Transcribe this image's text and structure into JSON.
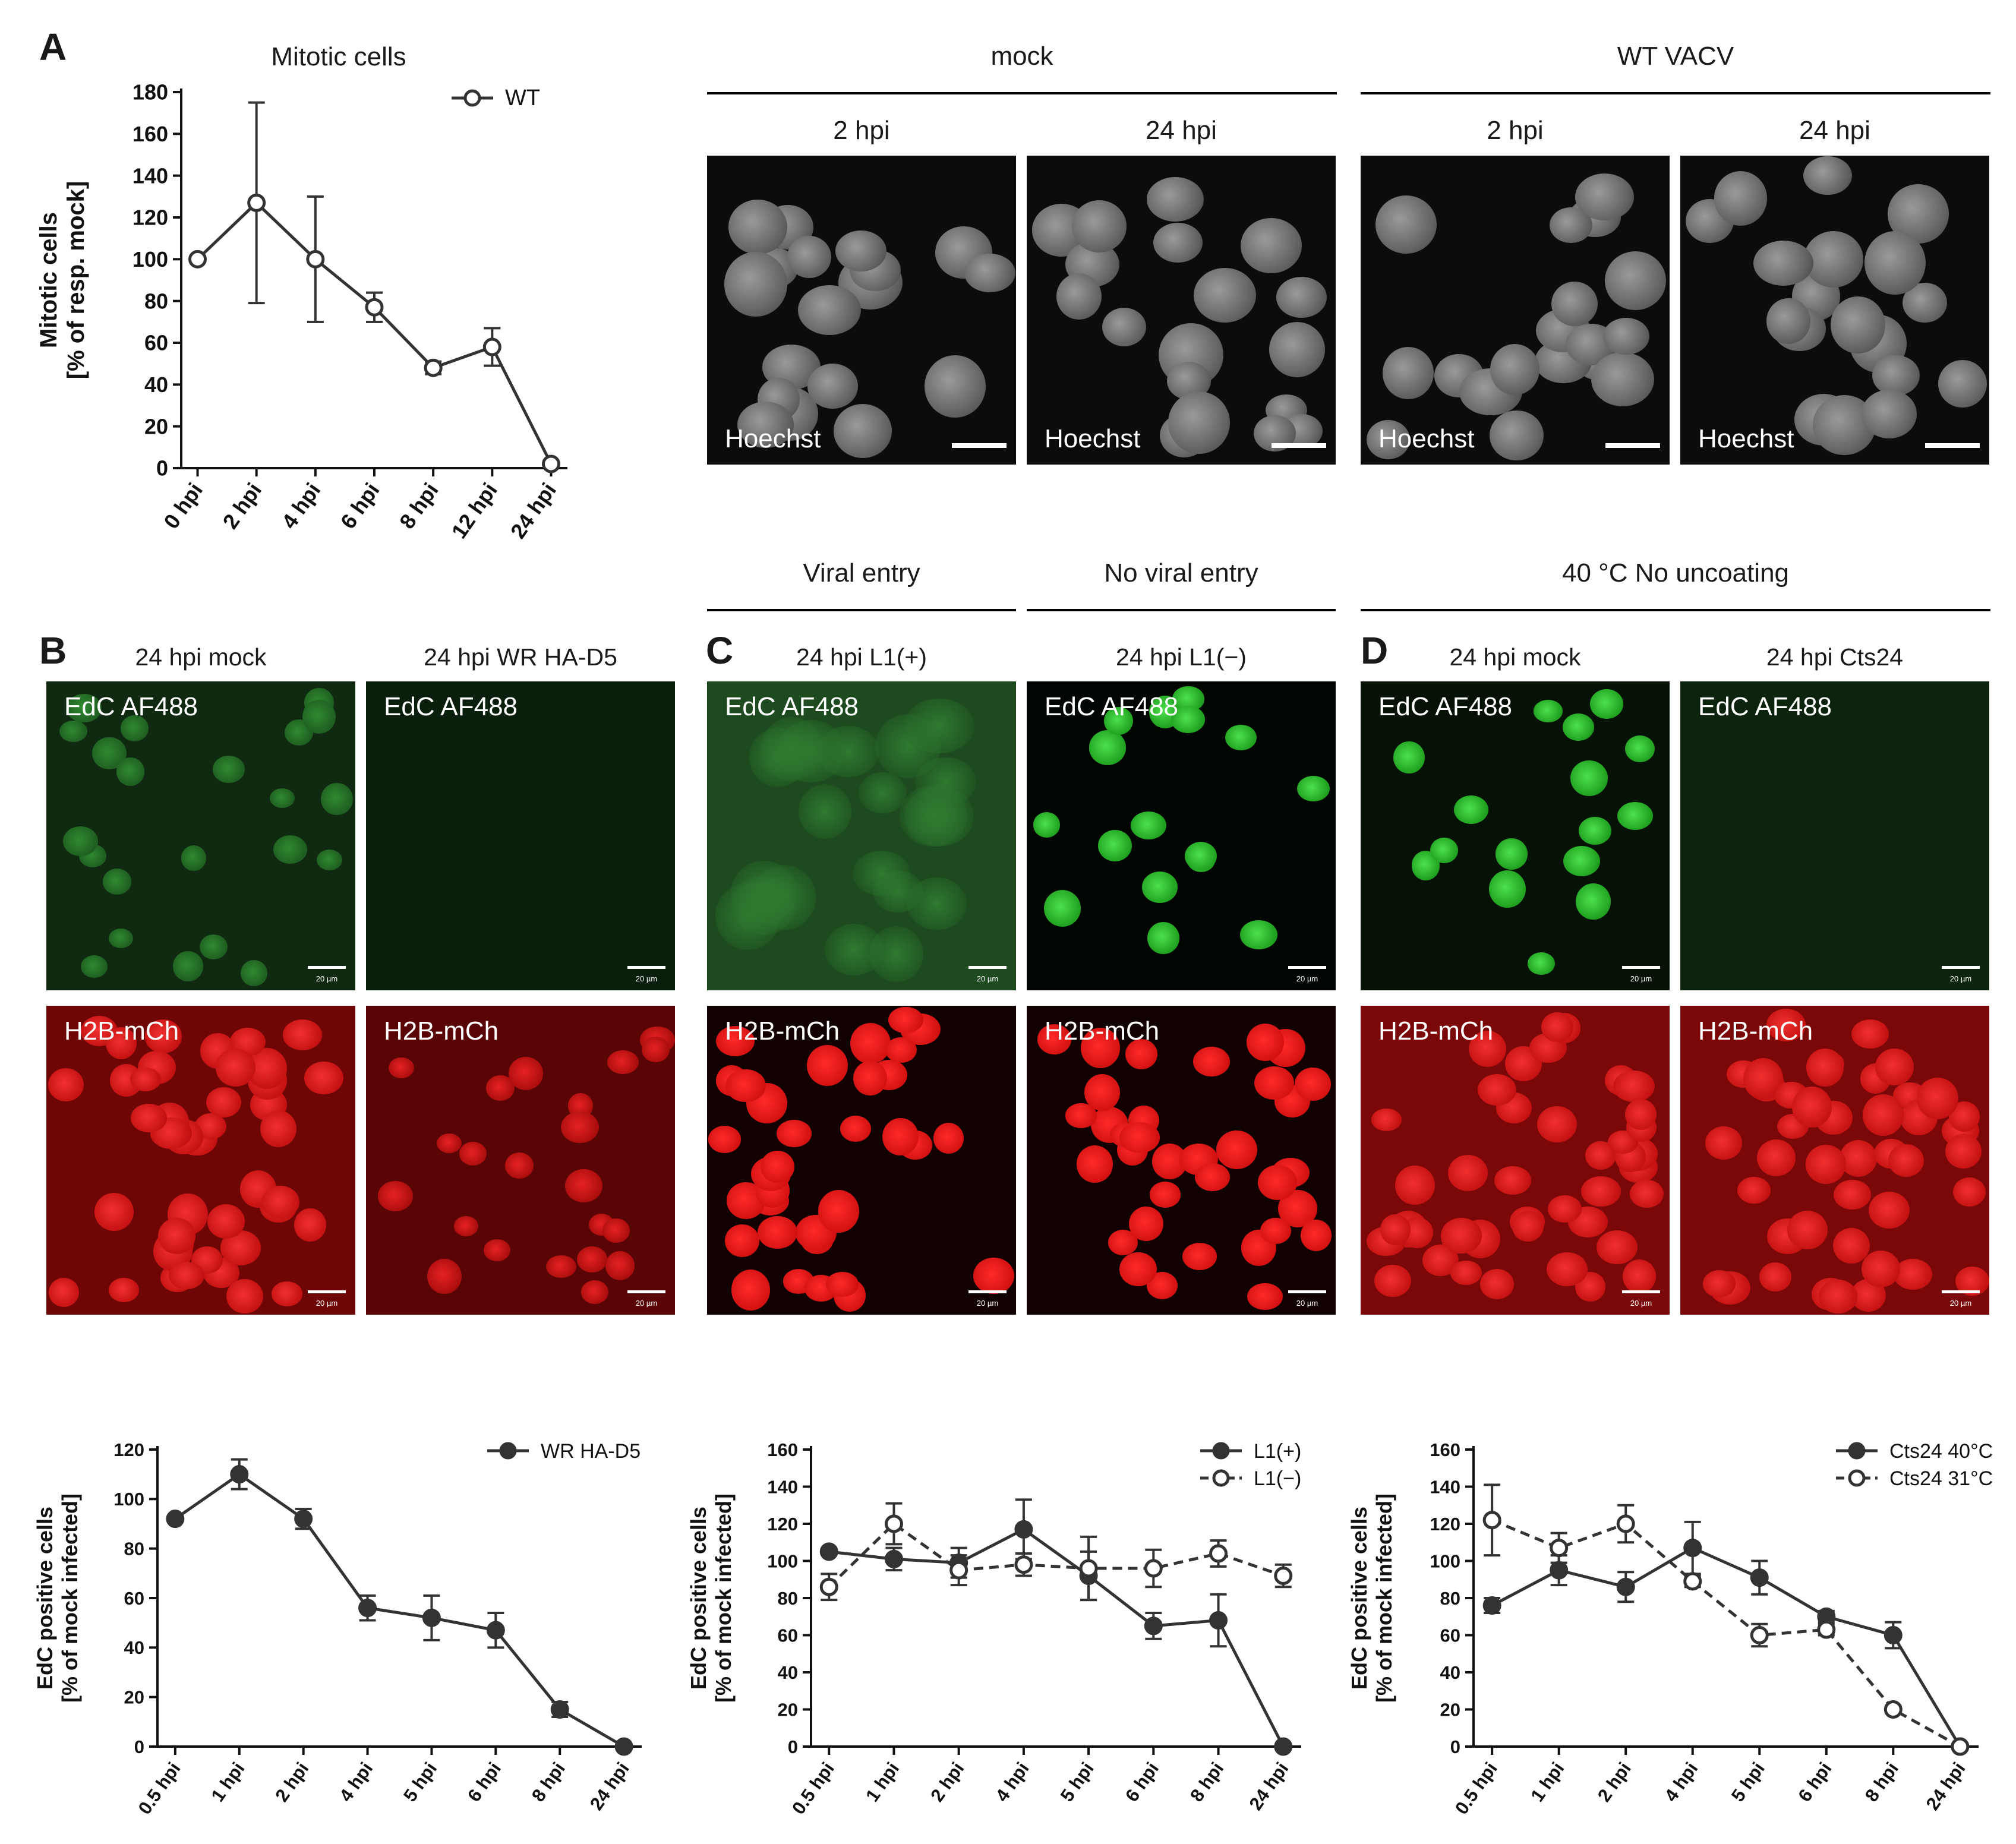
{
  "panel_labels": {
    "a": "A",
    "b": "B",
    "c": "C",
    "d": "D"
  },
  "panel_a": {
    "top_headers": [
      "mock",
      "WT VACV"
    ],
    "sub_headers": [
      "2 hpi",
      "24 hpi",
      "2 hpi",
      "24 hpi"
    ],
    "image_label": "Hoechst"
  },
  "panel_bcd": {
    "group_headers": [
      "Viral entry",
      "No viral entry",
      "40 °C No uncoating"
    ],
    "column_titles": [
      "24 hpi mock",
      "24 hpi WR HA-D5",
      "24 hpi L1(+)",
      "24 hpi L1(−)",
      "24 hpi mock",
      "24 hpi Cts24"
    ],
    "channel_green": "EdC AF488",
    "channel_red": "H2B-mCh",
    "scale_text": "20 µm"
  },
  "colors": {
    "green": "#3cd43c",
    "red": "#ee1c1c",
    "line": "#333333"
  },
  "chart_data": [
    {
      "id": "chart-a",
      "type": "line",
      "title": "Mitotic cells",
      "ylabel": "Mitotic cells",
      "ylabel2": "[% of resp. mock]",
      "categories": [
        "0 hpi",
        "2 hpi",
        "4 hpi",
        "6 hpi",
        "8 hpi",
        "12 hpi",
        "24 hpi"
      ],
      "ylim": [
        0,
        180
      ],
      "yticks": [
        0,
        20,
        40,
        60,
        80,
        100,
        120,
        140,
        160,
        180
      ],
      "legend_position": "top-right",
      "series": [
        {
          "name": "WT",
          "style": "open-solid",
          "values": [
            100,
            127,
            100,
            77,
            48,
            58,
            2
          ],
          "errors": [
            0,
            48,
            30,
            7,
            3,
            9,
            0
          ]
        }
      ]
    },
    {
      "id": "chart-b",
      "type": "line",
      "ylabel": "EdC positive cells",
      "ylabel2": "[% of mock infected]",
      "categories": [
        "0.5 hpi",
        "1 hpi",
        "2 hpi",
        "4 hpi",
        "5 hpi",
        "6 hpi",
        "8 hpi",
        "24 hpi"
      ],
      "ylim": [
        0,
        120
      ],
      "yticks": [
        0,
        20,
        40,
        60,
        80,
        100,
        120
      ],
      "legend_position": "top-right",
      "series": [
        {
          "name": "WR HA-D5",
          "style": "filled-solid",
          "values": [
            92,
            110,
            92,
            56,
            52,
            47,
            15,
            0
          ],
          "errors": [
            0,
            6,
            4,
            5,
            9,
            7,
            3,
            0
          ]
        }
      ]
    },
    {
      "id": "chart-c",
      "type": "line",
      "ylabel": "EdC positive cells",
      "ylabel2": "[% of mock infected]",
      "categories": [
        "0.5 hpi",
        "1 hpi",
        "2 hpi",
        "4 hpi",
        "5 hpi",
        "6 hpi",
        "8 hpi",
        "24 hpi"
      ],
      "ylim": [
        0,
        160
      ],
      "yticks": [
        0,
        20,
        40,
        60,
        80,
        100,
        120,
        140,
        160
      ],
      "legend_position": "top-right",
      "series": [
        {
          "name": "L1(+)",
          "style": "filled-solid",
          "values": [
            105,
            101,
            99,
            117,
            92,
            65,
            68,
            0
          ],
          "errors": [
            0,
            6,
            8,
            16,
            13,
            7,
            14,
            0
          ]
        },
        {
          "name": "L1(−)",
          "style": "open-dashed",
          "values": [
            86,
            120,
            95,
            98,
            96,
            96,
            104,
            92
          ],
          "errors": [
            7,
            11,
            8,
            6,
            17,
            10,
            7,
            6
          ]
        }
      ]
    },
    {
      "id": "chart-d",
      "type": "line",
      "ylabel": "EdC positive cells",
      "ylabel2": "[% of mock infected]",
      "categories": [
        "0.5 hpi",
        "1 hpi",
        "2 hpi",
        "4 hpi",
        "5 hpi",
        "6 hpi",
        "8 hpi",
        "24 hpi"
      ],
      "ylim": [
        0,
        160
      ],
      "yticks": [
        0,
        20,
        40,
        60,
        80,
        100,
        120,
        140,
        160
      ],
      "legend_position": "top-right",
      "series": [
        {
          "name": "Cts24 40°C",
          "style": "filled-solid",
          "values": [
            76,
            95,
            86,
            107,
            91,
            70,
            60,
            0
          ],
          "errors": [
            4,
            8,
            8,
            14,
            9,
            3,
            7,
            0
          ]
        },
        {
          "name": "Cts24 31°C",
          "style": "open-dashed",
          "values": [
            122,
            107,
            120,
            89,
            60,
            63,
            20,
            0
          ],
          "errors": [
            19,
            8,
            10,
            3,
            6,
            3,
            2,
            0
          ]
        }
      ]
    }
  ]
}
